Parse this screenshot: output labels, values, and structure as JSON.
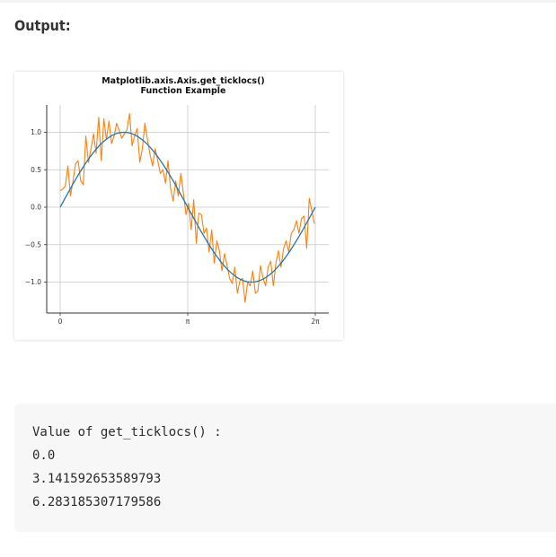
{
  "heading": "Output:",
  "chart_data": {
    "type": "line",
    "title": "Matplotlib.axis.Axis.get_ticklocs()",
    "subtitle": "Function Example",
    "xlim": [
      -0.35,
      6.6
    ],
    "ylim": [
      -1.45,
      1.45
    ],
    "xticks": [
      {
        "value": 0.0,
        "label": "0"
      },
      {
        "value": 3.141592653589793,
        "label": "π"
      },
      {
        "value": 6.283185307179586,
        "label": "2π"
      }
    ],
    "yticks": [
      {
        "value": 1.0,
        "label": "1.0"
      },
      {
        "value": 0.5,
        "label": "0.5"
      },
      {
        "value": 0.0,
        "label": "0.0"
      },
      {
        "value": -0.5,
        "label": "−0.5"
      },
      {
        "value": -1.0,
        "label": "−1.0"
      }
    ],
    "grid": true,
    "series": [
      {
        "color": "#1f77b4",
        "x": [
          0,
          0.314,
          0.628,
          0.942,
          1.257,
          1.571,
          1.885,
          2.199,
          2.513,
          2.827,
          3.142,
          3.456,
          3.77,
          4.084,
          4.398,
          4.712,
          5.027,
          5.341,
          5.655,
          5.969,
          6.283
        ],
        "y": [
          0,
          0.309,
          0.588,
          0.809,
          0.951,
          1.0,
          0.951,
          0.809,
          0.588,
          0.309,
          0,
          -0.309,
          -0.588,
          -0.809,
          -0.951,
          -1.0,
          -0.951,
          -0.809,
          -0.588,
          -0.309,
          0
        ]
      },
      {
        "color": "#ff7f0e",
        "x": [
          0,
          0.063,
          0.126,
          0.19,
          0.253,
          0.316,
          0.379,
          0.443,
          0.506,
          0.569,
          0.632,
          0.696,
          0.759,
          0.822,
          0.885,
          0.949,
          1.012,
          1.075,
          1.138,
          1.202,
          1.265,
          1.328,
          1.391,
          1.455,
          1.518,
          1.581,
          1.644,
          1.708,
          1.771,
          1.834,
          1.897,
          1.961,
          2.024,
          2.087,
          2.15,
          2.214,
          2.277,
          2.34,
          2.403,
          2.467,
          2.53,
          2.593,
          2.656,
          2.72,
          2.783,
          2.846,
          2.909,
          2.973,
          3.036,
          3.099,
          3.162,
          3.226,
          3.289,
          3.352,
          3.415,
          3.479,
          3.542,
          3.605,
          3.668,
          3.732,
          3.795,
          3.858,
          3.921,
          3.985,
          4.048,
          4.111,
          4.174,
          4.238,
          4.301,
          4.364,
          4.427,
          4.491,
          4.554,
          4.617,
          4.68,
          4.744,
          4.807,
          4.87,
          4.933,
          4.997,
          5.06,
          5.123,
          5.186,
          5.25,
          5.313,
          5.376,
          5.439,
          5.503,
          5.566,
          5.629,
          5.692,
          5.756,
          5.819,
          5.882,
          5.945,
          6.009,
          6.072,
          6.135,
          6.198,
          6.262
        ],
        "y": [
          0.22,
          0.24,
          0.28,
          0.55,
          0.15,
          0.35,
          0.58,
          0.62,
          0.35,
          0.3,
          0.95,
          0.6,
          0.78,
          0.98,
          0.72,
          1.2,
          0.62,
          1.18,
          0.9,
          1.15,
          0.85,
          0.95,
          1.12,
          1.02,
          0.92,
          0.98,
          1.03,
          1.25,
          0.82,
          0.95,
          1.05,
          0.6,
          0.78,
          1.12,
          0.9,
          0.7,
          0.55,
          0.78,
          0.62,
          0.45,
          0.5,
          0.32,
          0.62,
          0.25,
          0.08,
          0.35,
          0.15,
          0.45,
          0.18,
          -0.1,
          0.05,
          -0.3,
          0.1,
          -0.48,
          -0.08,
          -0.1,
          -0.35,
          -0.28,
          -0.6,
          -0.3,
          -0.75,
          -0.45,
          -0.58,
          -0.85,
          -0.62,
          -0.78,
          -0.95,
          -1.02,
          -0.8,
          -1.15,
          -0.98,
          -0.95,
          -1.27,
          -1.0,
          -1.05,
          -0.85,
          -1.15,
          -1.12,
          -0.78,
          -0.95,
          -1.05,
          -0.8,
          -0.72,
          -1.05,
          -0.75,
          -0.58,
          -0.8,
          -0.55,
          -0.45,
          -0.6,
          -0.35,
          -0.3,
          -0.18,
          -0.35,
          -0.15,
          -0.12,
          -0.55,
          0.12,
          -0.05,
          -0.22
        ]
      }
    ]
  },
  "code_output": {
    "lines": [
      "Value of get_ticklocs() :",
      "0.0",
      "3.141592653589793",
      "6.283185307179586"
    ]
  }
}
